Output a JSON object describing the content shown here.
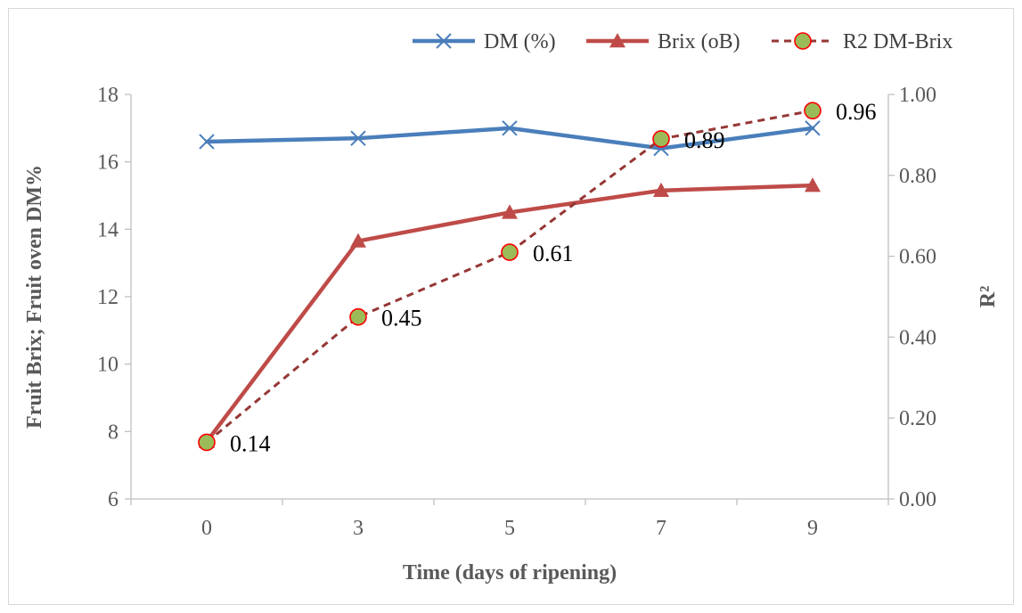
{
  "chart_data": {
    "type": "line",
    "categories": [
      "0",
      "3",
      "5",
      "7",
      "9"
    ],
    "xlabel": "Time (days of ripening)",
    "ylabel": "Fruit Brix; Fruit oven DM%",
    "y2label": "R²",
    "ylim": [
      6,
      18
    ],
    "y2lim": [
      0,
      1
    ],
    "yticks": [
      "6",
      "8",
      "10",
      "12",
      "14",
      "16",
      "18"
    ],
    "y2ticks": [
      "0.00",
      "0.20",
      "0.40",
      "0.60",
      "0.80",
      "1.00"
    ],
    "grid": false,
    "legend_position": "top-right",
    "series": [
      {
        "name": "DM (%)",
        "axis": "left",
        "values": [
          16.6,
          16.7,
          17.0,
          16.4,
          17.0
        ],
        "color": "#4a7ebb",
        "marker": "x",
        "dash": "solid"
      },
      {
        "name": "Brix (oB)",
        "axis": "left",
        "values": [
          7.7,
          13.65,
          14.5,
          15.15,
          15.3
        ],
        "color": "#be4b48",
        "marker": "triangle",
        "dash": "solid"
      },
      {
        "name": "R2 DM-Brix",
        "axis": "right",
        "values": [
          0.14,
          0.45,
          0.61,
          0.89,
          0.96
        ],
        "labels": [
          "0.14",
          "0.45",
          "0.61",
          "0.89",
          "0.96"
        ],
        "color": "#953735",
        "marker": "circle",
        "marker_fill": "#9bbb59",
        "marker_edge": "#ff0000",
        "dash": "dashed"
      }
    ]
  }
}
